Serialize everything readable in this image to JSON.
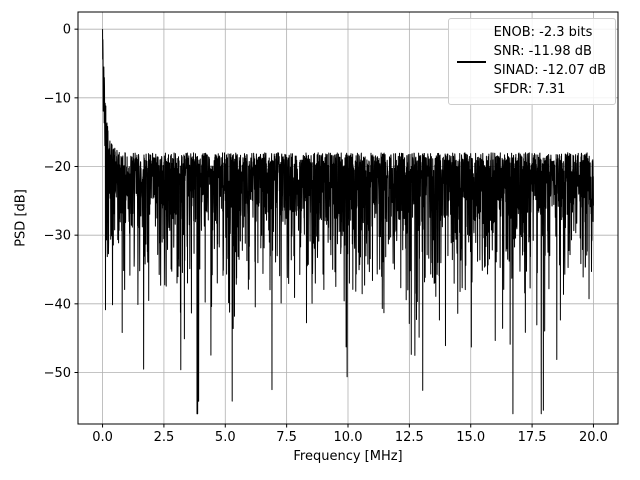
{
  "chart_data": {
    "type": "line",
    "title": "",
    "xlabel": "Frequency [MHz]",
    "ylabel": "PSD [dB]",
    "xlim": [
      -1.0,
      21.0
    ],
    "ylim": [
      -57.5,
      2.5
    ],
    "xticks": [
      0,
      2.5,
      5,
      7.5,
      10,
      12.5,
      15,
      17.5,
      20
    ],
    "xtick_labels": [
      "0.0",
      "2.5",
      "5.0",
      "7.5",
      "10.0",
      "12.5",
      "15.0",
      "17.5",
      "20.0"
    ],
    "yticks": [
      0,
      -10,
      -20,
      -30,
      -40,
      -50
    ],
    "ytick_labels": [
      "0",
      "−10",
      "−20",
      "−30",
      "−40",
      "−50"
    ],
    "grid": true,
    "grid_color": "#b0b0b0",
    "line_color": "#000000",
    "spine_color": "#000000",
    "legend": {
      "position": "upper right",
      "lines": [
        "ENOB: -2.3 bits",
        "SNR: -11.98 dB",
        "SINAD: -12.07 dB",
        "SFDR: 7.31"
      ]
    },
    "annotations": {
      "enob_bits": -2.3,
      "snr_db": -11.98,
      "sinad_db": -12.07,
      "sfdr": 7.31
    },
    "series": [
      {
        "name": "PSD",
        "synthesis": {
          "kind": "noise-psd",
          "seed": 42,
          "n_points": 3000,
          "freq_range": [
            0,
            20
          ],
          "upper_floor_db": -18,
          "tail_scale": 1.3,
          "dc_spike_db": 0,
          "dc_boost_db": 19,
          "dc_decay_mhz": 0.15,
          "min_db": -56
        }
      }
    ]
  }
}
